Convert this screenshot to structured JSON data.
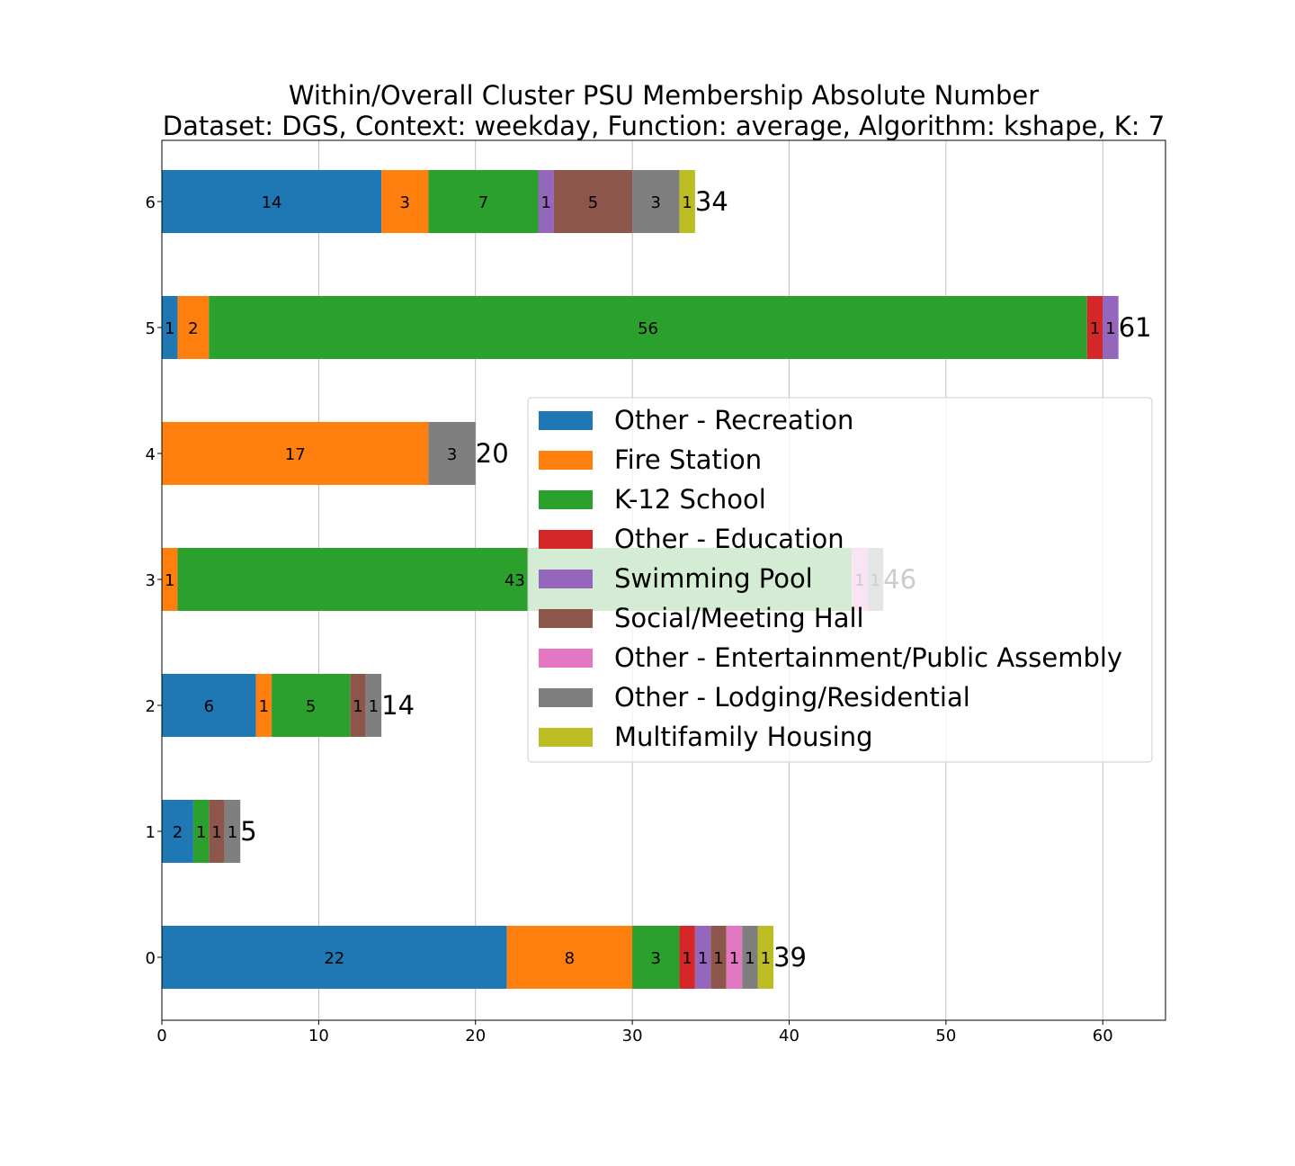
{
  "chart_data": {
    "type": "bar",
    "orientation": "horizontal",
    "stacked": true,
    "title_lines": [
      "Within/Overall Cluster PSU Membership Absolute Number",
      "Dataset: DGS, Context: weekday, Function: average, Algorithm: kshape, K: 7"
    ],
    "categories": [
      "0",
      "1",
      "2",
      "3",
      "4",
      "5",
      "6"
    ],
    "xlim": [
      0,
      64
    ],
    "xticks": [
      0,
      10,
      20,
      30,
      40,
      50,
      60
    ],
    "grid": "x",
    "legend_position": "center-right",
    "series": [
      {
        "name": "Other - Recreation",
        "color": "#1f77b4",
        "values": [
          22,
          2,
          6,
          0,
          0,
          1,
          14
        ]
      },
      {
        "name": "Fire Station",
        "color": "#ff7f0e",
        "values": [
          8,
          0,
          1,
          1,
          17,
          2,
          3
        ]
      },
      {
        "name": "K-12 School",
        "color": "#2ca02c",
        "values": [
          3,
          1,
          5,
          43,
          0,
          56,
          7
        ]
      },
      {
        "name": "Other - Education",
        "color": "#d62728",
        "values": [
          1,
          0,
          0,
          0,
          0,
          1,
          0
        ]
      },
      {
        "name": "Swimming Pool",
        "color": "#9467bd",
        "values": [
          1,
          0,
          0,
          0,
          0,
          1,
          1
        ]
      },
      {
        "name": "Social/Meeting Hall",
        "color": "#8c564b",
        "values": [
          1,
          1,
          1,
          0,
          0,
          0,
          5
        ]
      },
      {
        "name": "Other - Entertainment/Public Assembly",
        "color": "#e377c2",
        "values": [
          1,
          0,
          0,
          1,
          0,
          0,
          0
        ]
      },
      {
        "name": "Other - Lodging/Residential",
        "color": "#7f7f7f",
        "values": [
          1,
          1,
          1,
          1,
          3,
          0,
          3
        ]
      },
      {
        "name": "Multifamily Housing",
        "color": "#bcbd22",
        "values": [
          1,
          0,
          0,
          0,
          0,
          0,
          1
        ]
      }
    ],
    "totals": [
      "39",
      "5",
      "14",
      "46",
      "20",
      "61",
      "34"
    ]
  }
}
